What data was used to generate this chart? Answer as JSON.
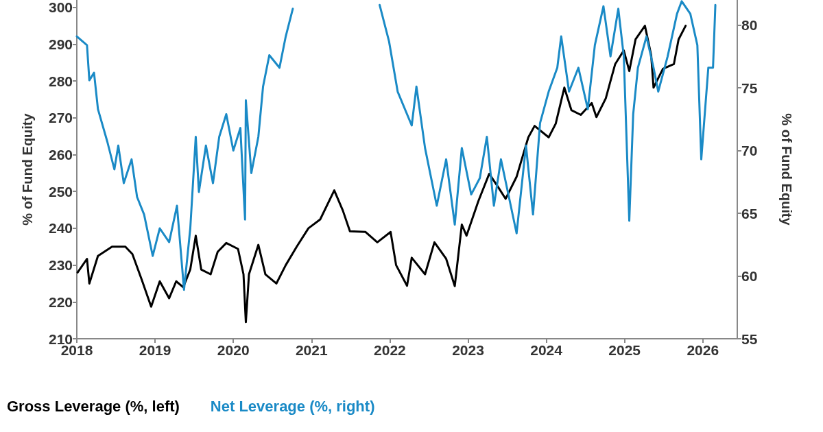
{
  "chart_data": {
    "type": "line",
    "ylabel": "% of Fund Equity",
    "y2label": "% of Fund Equity",
    "xlim": [
      2018,
      2026.44
    ],
    "xticks": [
      2018,
      2019,
      2020,
      2021,
      2022,
      2023,
      2024,
      2025,
      2026
    ],
    "ylim": [
      210,
      302
    ],
    "yticks": [
      210,
      220,
      230,
      240,
      250,
      260,
      270,
      280,
      290,
      300
    ],
    "y2lim": [
      55,
      82
    ],
    "y2ticks": [
      55,
      60,
      65,
      70,
      75,
      80
    ],
    "grid": false,
    "legend": "bottom left",
    "marker": "none",
    "line_style": "solid",
    "series": [
      {
        "name": "Gross Leverage (%, left)",
        "color": "#000000",
        "x": [
          2018.01,
          2018.13,
          2018.16,
          2018.27,
          2018.45,
          2018.62,
          2018.71,
          2018.83,
          2018.95,
          2019.06,
          2019.18,
          2019.27,
          2019.36,
          2019.45,
          2019.52,
          2019.59,
          2019.71,
          2019.8,
          2019.91,
          2020.06,
          2020.13,
          2020.16,
          2020.2,
          2020.32,
          2020.41,
          2020.55,
          2020.67,
          2020.81,
          2020.96,
          2021.11,
          2021.29,
          2021.4,
          2021.49,
          2021.69,
          2021.84,
          2022.01,
          2022.08,
          2022.22,
          2022.28,
          2022.45,
          2022.57,
          2022.72,
          2022.83,
          2022.92,
          2022.98,
          2023.13,
          2023.27,
          2023.39,
          2023.48,
          2023.62,
          2023.77,
          2023.85,
          2024.03,
          2024.12,
          2024.23,
          2024.32,
          2024.44,
          2024.58,
          2024.64,
          2024.76,
          2024.82,
          2024.88,
          2024.99,
          2025.06,
          2025.14,
          2025.26,
          2025.34,
          2025.37,
          2025.49,
          2025.63,
          2025.69,
          2025.78
        ],
        "values": [
          228,
          231.7,
          225,
          232.5,
          235,
          235,
          233,
          226,
          218.7,
          225.6,
          221,
          225.6,
          224,
          228.8,
          238,
          228.8,
          227.5,
          233.6,
          236,
          234.4,
          227.5,
          214.5,
          227.5,
          235.5,
          227.5,
          225,
          230,
          235,
          240,
          242.4,
          250.3,
          244.8,
          239.2,
          239,
          236.2,
          239,
          230,
          224.4,
          232,
          227.5,
          236.2,
          231.7,
          224.3,
          241,
          238,
          247.3,
          254.8,
          251,
          248,
          254,
          264.7,
          267.8,
          264.7,
          268.4,
          278.2,
          272.1,
          270.8,
          274,
          270.2,
          275.3,
          280,
          284.6,
          288.3,
          282.7,
          291.3,
          295,
          287,
          278.2,
          283.3,
          284.6,
          291.3,
          295
        ]
      },
      {
        "name": "Net Leverage (%, right)",
        "color": "#1a8ac6",
        "axis": "y2",
        "x": [
          2018.0,
          2018.13,
          2018.16,
          2018.22,
          2018.27,
          2018.39,
          2018.48,
          2018.53,
          2018.6,
          2018.7,
          2018.77,
          2018.86,
          2018.97,
          2019.06,
          2019.18,
          2019.28,
          2019.37,
          2019.45,
          2019.52,
          2019.56,
          2019.65,
          2019.74,
          2019.82,
          2019.91,
          2020.0,
          2020.09,
          2020.15,
          2020.16,
          2020.23,
          2020.32,
          2020.38,
          2020.46,
          2020.59,
          2020.67,
          2020.76,
          2021.3,
          2021.87,
          2021.99,
          2022.1,
          2022.28,
          2022.34,
          2022.45,
          2022.6,
          2022.72,
          2022.83,
          2022.92,
          2023.04,
          2023.15,
          2023.24,
          2023.33,
          2023.42,
          2023.62,
          2023.74,
          2023.83,
          2023.92,
          2024.03,
          2024.14,
          2024.19,
          2024.29,
          2024.41,
          2024.53,
          2024.62,
          2024.73,
          2024.82,
          2024.92,
          2024.99,
          2025.06,
          2025.11,
          2025.17,
          2025.28,
          2025.37,
          2025.43,
          2025.55,
          2025.67,
          2025.73,
          2025.84,
          2025.93,
          2025.98,
          2026.07,
          2026.13,
          2026.16
        ],
        "values": [
          79.1,
          78.4,
          75.6,
          76.2,
          73.3,
          70.7,
          68.5,
          70.4,
          67.4,
          69.3,
          66.3,
          64.9,
          61.6,
          63.8,
          62.7,
          65.6,
          58.9,
          63.8,
          71.1,
          66.7,
          70.4,
          67.4,
          71.1,
          72.9,
          70,
          71.8,
          64.5,
          74,
          68.2,
          71.1,
          75.1,
          77.6,
          76.6,
          79.1,
          81.3,
          null,
          81.6,
          78.7,
          74.7,
          72,
          75.1,
          70.2,
          65.6,
          69.3,
          64.1,
          70.2,
          66.5,
          67.8,
          71.1,
          65.6,
          69.3,
          63.4,
          70.4,
          64.9,
          72.2,
          74.7,
          76.6,
          79.1,
          74.7,
          76.6,
          73.3,
          78.4,
          81.5,
          77.5,
          81.3,
          77.5,
          64.4,
          72.9,
          76.6,
          79.1,
          76.6,
          74.7,
          77.5,
          80.9,
          81.9,
          80.9,
          78.4,
          69.3,
          76.6,
          76.6,
          81.6
        ]
      }
    ]
  }
}
